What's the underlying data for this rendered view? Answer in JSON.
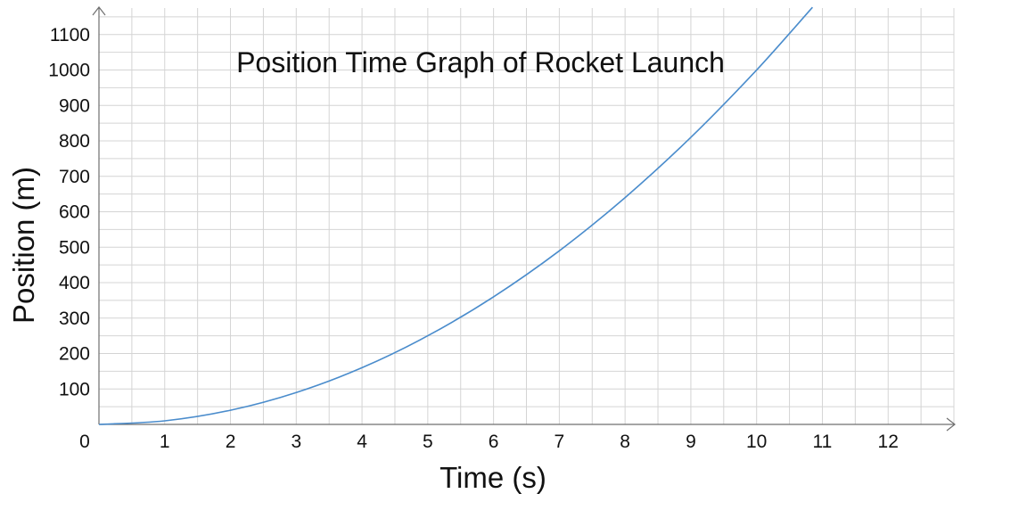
{
  "chart_data": {
    "type": "line",
    "title": "Position Time Graph of Rocket Launch",
    "xlabel": "Time (s)",
    "ylabel": "Position (m)",
    "xlim": [
      0,
      13
    ],
    "ylim": [
      0,
      1175
    ],
    "x_ticks": [
      1,
      2,
      3,
      4,
      5,
      6,
      7,
      8,
      9,
      10,
      11,
      12
    ],
    "y_ticks": [
      100,
      200,
      300,
      400,
      500,
      600,
      700,
      800,
      900,
      1000,
      1100
    ],
    "origin_label": "0",
    "grid": true,
    "line_color": "#4a8ccc",
    "series": [
      {
        "x": [
          0,
          1,
          2,
          3,
          4,
          5,
          6,
          7,
          8,
          9,
          10,
          10.85
        ],
        "y": [
          0,
          10,
          40,
          90,
          160,
          250,
          360,
          490,
          640,
          810,
          1000,
          1177
        ]
      }
    ]
  }
}
